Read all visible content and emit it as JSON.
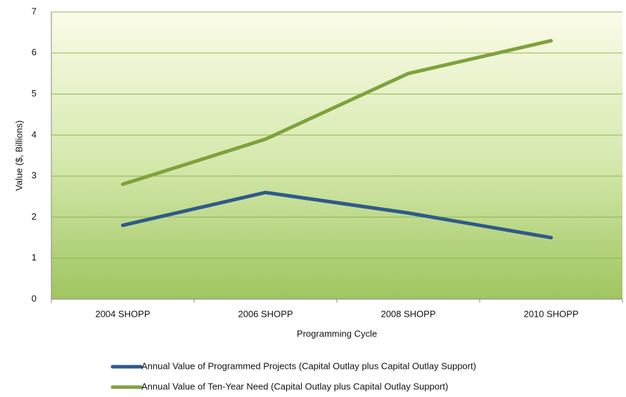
{
  "chart_data": {
    "type": "line",
    "categories": [
      "2004 SHOPP",
      "2006 SHOPP",
      "2008 SHOPP",
      "2010 SHOPP"
    ],
    "series": [
      {
        "name": "Annual Value of Programmed Projects (Capital Outlay plus Capital Outlay Support)",
        "color": "#2f5a8a",
        "values": [
          1.8,
          2.6,
          2.1,
          1.5
        ]
      },
      {
        "name": "Annual Value of Ten-Year Need (Capital Outlay plus Capital Outlay Support)",
        "color": "#7fa23c",
        "values": [
          2.8,
          3.9,
          5.5,
          6.3
        ]
      }
    ],
    "x_label": "Programming Cycle",
    "y_label": "Value ($, Billions)",
    "ylim": [
      0,
      7
    ],
    "yticks": [
      0,
      1,
      2,
      3,
      4,
      5,
      6,
      7
    ],
    "grid": true,
    "legend": "bottom"
  }
}
